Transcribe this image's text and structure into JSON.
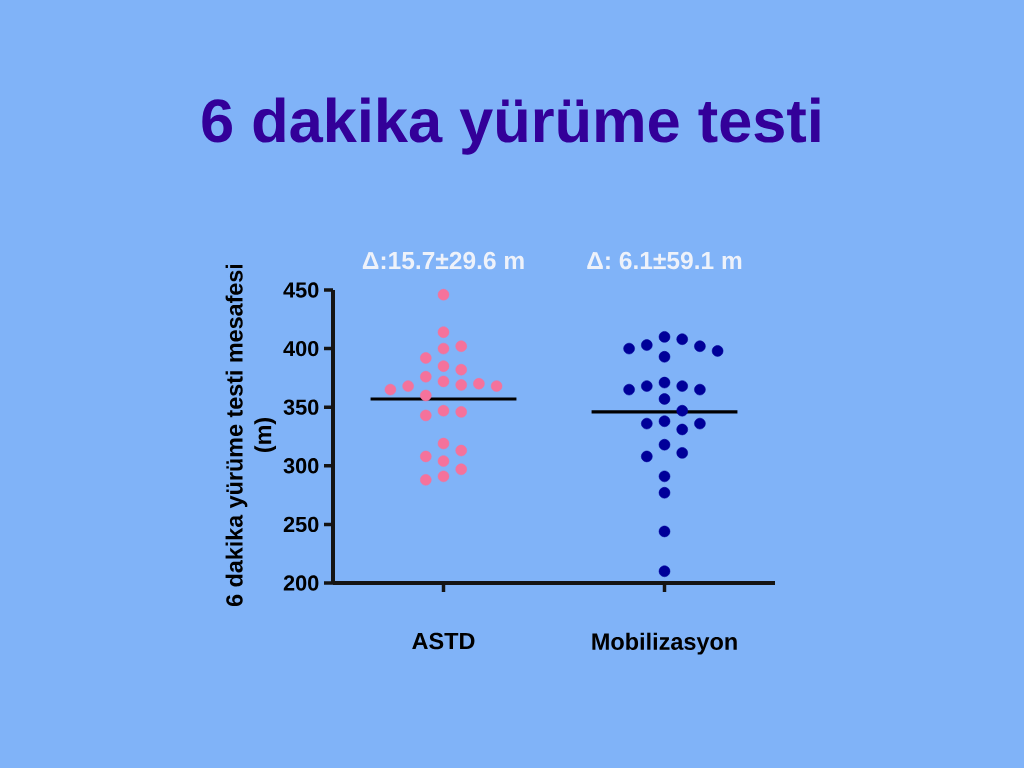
{
  "chart_data": {
    "type": "scatter",
    "title": "6 dakika yürüme testi",
    "ylabel": "6 dakika yürüme testi mesafesi (m)",
    "categories": [
      "ASTD",
      "Mobilizasyon"
    ],
    "series": [
      {
        "color": "#f5729b",
        "x": [
          "ASTD",
          "ASTD",
          "ASTD",
          "ASTD",
          "ASTD",
          "ASTD",
          "ASTD",
          "ASTD",
          "ASTD",
          "ASTD",
          "ASTD",
          "ASTD",
          "ASTD",
          "ASTD",
          "ASTD",
          "ASTD",
          "ASTD",
          "ASTD",
          "ASTD",
          "ASTD",
          "ASTD",
          "ASTD",
          "ASTD",
          "ASTD",
          "ASTD"
        ],
        "values": [
          446,
          414,
          400,
          402,
          392,
          385,
          382,
          376,
          370,
          368,
          365,
          360,
          368,
          369,
          372,
          347,
          343,
          346,
          319,
          308,
          304,
          313,
          297,
          288,
          291
        ]
      },
      {
        "color": "#000099",
        "x": [
          "Mobilizasyon",
          "Mobilizasyon",
          "Mobilizasyon",
          "Mobilizasyon",
          "Mobilizasyon",
          "Mobilizasyon",
          "Mobilizasyon",
          "Mobilizasyon",
          "Mobilizasyon",
          "Mobilizasyon",
          "Mobilizasyon",
          "Mobilizasyon",
          "Mobilizasyon",
          "Mobilizasyon",
          "Mobilizasyon",
          "Mobilizasyon",
          "Mobilizasyon",
          "Mobilizasyon",
          "Mobilizasyon",
          "Mobilizasyon",
          "Mobilizasyon",
          "Mobilizasyon",
          "Mobilizasyon",
          "Mobilizasyon",
          "Mobilizasyon"
        ],
        "values": [
          408,
          402,
          398,
          410,
          393,
          400,
          403,
          371,
          368,
          365,
          365,
          368,
          357,
          347,
          336,
          331,
          336,
          338,
          318,
          311,
          308,
          291,
          277,
          244,
          210
        ]
      }
    ],
    "ref_lines": [
      {
        "axis": "y",
        "value": 357,
        "color": "#000000"
      },
      {
        "axis": "y",
        "value": 346,
        "color": "#000000"
      }
    ],
    "ylim": [
      200,
      450
    ],
    "yticks": [
      200,
      250,
      300,
      350,
      400,
      450
    ],
    "marker": "circle",
    "annotations": [
      "Δ:15.7±29.6 m",
      "Δ: 6.1±59.1 m"
    ]
  }
}
